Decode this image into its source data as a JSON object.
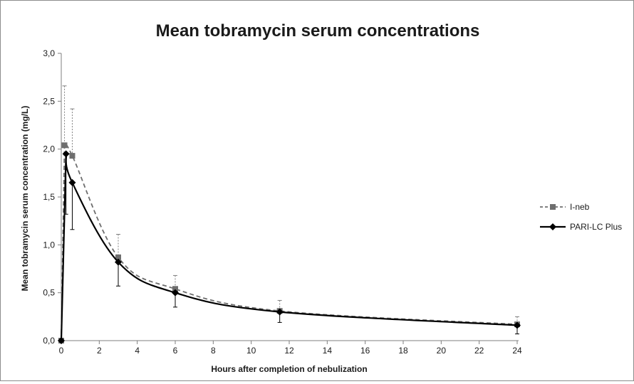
{
  "chart_data": {
    "type": "line",
    "title": "Mean tobramycin serum concentrations",
    "xlabel": "Hours after completion of nebulization",
    "ylabel": "Mean tobramycin serum concentration  (mg/L)",
    "xlim": [
      0,
      24
    ],
    "ylim": [
      0,
      3.0
    ],
    "x_ticks": [
      "0",
      "2",
      "4",
      "6",
      "8",
      "10",
      "12",
      "14",
      "16",
      "18",
      "20",
      "22",
      "24"
    ],
    "y_ticks": [
      "0,0",
      "0,5",
      "1,0",
      "1,5",
      "2,0",
      "2,5",
      "3,0"
    ],
    "grid": false,
    "legend_position": "right",
    "series": [
      {
        "name": "I-neb",
        "line_style": "dashed",
        "marker": "square",
        "color": "#6e6e6e",
        "x": [
          0,
          0.17,
          0.58,
          3,
          6,
          11.5,
          24
        ],
        "y": [
          0,
          2.04,
          1.93,
          0.87,
          0.54,
          0.31,
          0.17
        ],
        "error_upper": [
          0,
          2.66,
          2.42,
          1.11,
          0.68,
          0.42,
          0.25
        ],
        "error_lower": [
          0,
          2.04,
          1.93,
          0.87,
          0.54,
          0.31,
          0.17
        ]
      },
      {
        "name": "PARI-LC Plus",
        "line_style": "solid",
        "marker": "diamond",
        "color": "#000000",
        "x": [
          0,
          0.25,
          0.58,
          3,
          6,
          11.5,
          24
        ],
        "y": [
          0,
          1.95,
          1.65,
          0.82,
          0.5,
          0.3,
          0.16
        ],
        "error_upper": [
          0,
          1.95,
          1.65,
          0.82,
          0.5,
          0.3,
          0.16
        ],
        "error_lower": [
          0,
          1.32,
          1.16,
          0.57,
          0.35,
          0.19,
          0.07
        ]
      }
    ]
  }
}
